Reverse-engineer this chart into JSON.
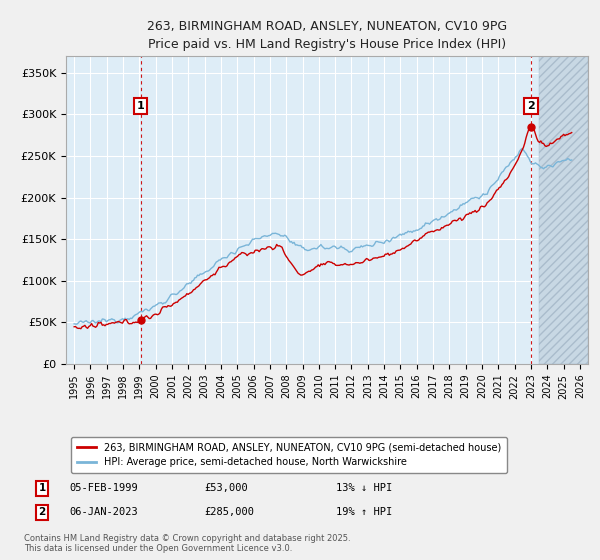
{
  "title": "263, BIRMINGHAM ROAD, ANSLEY, NUNEATON, CV10 9PG",
  "subtitle": "Price paid vs. HM Land Registry's House Price Index (HPI)",
  "legend_line1": "263, BIRMINGHAM ROAD, ANSLEY, NUNEATON, CV10 9PG (semi-detached house)",
  "legend_line2": "HPI: Average price, semi-detached house, North Warwickshire",
  "annotation1_date": "05-FEB-1999",
  "annotation1_price": "£53,000",
  "annotation1_hpi": "13% ↓ HPI",
  "annotation2_date": "06-JAN-2023",
  "annotation2_price": "£285,000",
  "annotation2_hpi": "19% ↑ HPI",
  "footnote": "Contains HM Land Registry data © Crown copyright and database right 2025.\nThis data is licensed under the Open Government Licence v3.0.",
  "sale1_year": 1999.08,
  "sale1_price": 53000,
  "sale2_year": 2023.0,
  "sale2_price": 285000,
  "hpi_color": "#7ab5d8",
  "price_color": "#cc0000",
  "background_color": "#deedf7",
  "grid_color": "#ffffff",
  "fig_background": "#f0f0f0",
  "ylim": [
    0,
    370000
  ],
  "xlim_start": 1994.5,
  "xlim_end": 2026.5,
  "ylabel_ticks": [
    0,
    50000,
    100000,
    150000,
    200000,
    250000,
    300000,
    350000
  ],
  "ylabel_labels": [
    "£0",
    "£50K",
    "£100K",
    "£150K",
    "£200K",
    "£250K",
    "£300K",
    "£350K"
  ],
  "xtick_years": [
    1995,
    1996,
    1997,
    1998,
    1999,
    2000,
    2001,
    2002,
    2003,
    2004,
    2005,
    2006,
    2007,
    2008,
    2009,
    2010,
    2011,
    2012,
    2013,
    2014,
    2015,
    2016,
    2017,
    2018,
    2019,
    2020,
    2021,
    2022,
    2023,
    2024,
    2025,
    2026
  ],
  "hatch_start": 2023.5,
  "hpi_anchors_x": [
    1995,
    1996,
    1997,
    1998,
    1999,
    2000,
    2001,
    2002,
    2003,
    2004,
    2005,
    2006,
    2007,
    2007.5,
    2008,
    2009,
    2010,
    2011,
    2012,
    2013,
    2014,
    2015,
    2016,
    2017,
    2018,
    2019,
    2020,
    2021,
    2022,
    2022.5,
    2023.0,
    2023.5,
    2024,
    2024.5,
    2025,
    2025.5
  ],
  "hpi_anchors_y": [
    48000,
    50000,
    52000,
    55000,
    61000,
    70000,
    82000,
    95000,
    110000,
    125000,
    138000,
    148000,
    155000,
    157000,
    152000,
    138000,
    140000,
    140000,
    138000,
    142000,
    148000,
    155000,
    162000,
    172000,
    182000,
    194000,
    202000,
    222000,
    248000,
    258000,
    242000,
    238000,
    236000,
    240000,
    245000,
    248000
  ],
  "price_anchors_x": [
    1995,
    1996,
    1997,
    1998,
    1999.08,
    2000,
    2001,
    2002,
    2003,
    2004,
    2005,
    2006,
    2007,
    2007.5,
    2008,
    2008.5,
    2009,
    2009.5,
    2010,
    2011,
    2012,
    2013,
    2014,
    2015,
    2016,
    2017,
    2018,
    2019,
    2020,
    2021,
    2022,
    2022.5,
    2023.0,
    2023.5,
    2024,
    2024.5,
    2025,
    2025.5
  ],
  "price_anchors_y": [
    43000,
    45000,
    47000,
    50000,
    53000,
    60000,
    72000,
    85000,
    100000,
    115000,
    128000,
    135000,
    140000,
    142000,
    130000,
    115000,
    108000,
    112000,
    118000,
    120000,
    120000,
    125000,
    130000,
    138000,
    148000,
    160000,
    168000,
    178000,
    188000,
    210000,
    238000,
    258000,
    285000,
    268000,
    262000,
    268000,
    275000,
    278000
  ]
}
